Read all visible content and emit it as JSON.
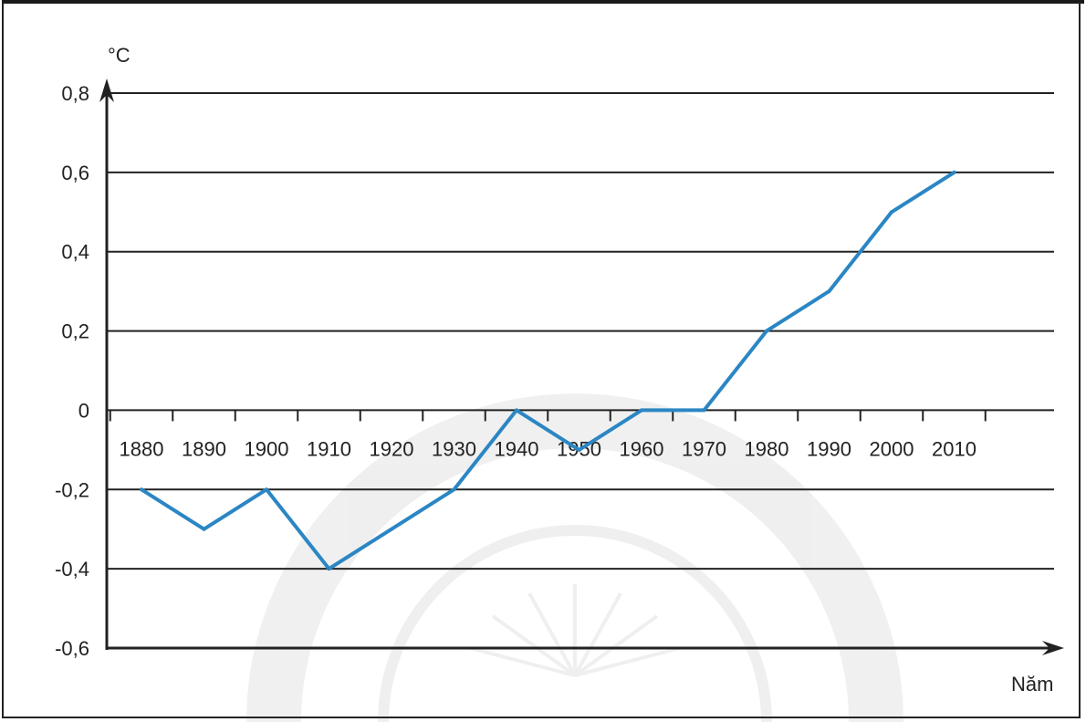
{
  "chart_data": {
    "type": "line",
    "ylabel": "°C",
    "xlabel": "Năm",
    "x": [
      1880,
      1890,
      1900,
      1910,
      1920,
      1930,
      1940,
      1950,
      1960,
      1970,
      1980,
      1990,
      2000,
      2010
    ],
    "x_tick_labels": [
      "1880",
      "1890",
      "1900",
      "1910",
      "1920",
      "1930",
      "1940",
      "1950",
      "1960",
      "1970",
      "1980",
      "1990",
      "2000",
      "2010"
    ],
    "y_tick_labels": [
      "0,8",
      "0,6",
      "0,4",
      "0,2",
      "0",
      "-0,2",
      "-0,4",
      "-0,6"
    ],
    "y_ticks": [
      0.8,
      0.6,
      0.4,
      0.2,
      0,
      -0.2,
      -0.4,
      -0.6
    ],
    "ylim": [
      -0.6,
      0.8
    ],
    "series": [
      {
        "values": [
          -0.2,
          -0.3,
          -0.2,
          -0.4,
          -0.3,
          -0.2,
          0.0,
          -0.1,
          0.0,
          0.0,
          0.2,
          0.3,
          0.5,
          0.6
        ]
      }
    ],
    "grid": true,
    "line_color": "#2b86c4",
    "grid_color": "#222222"
  }
}
